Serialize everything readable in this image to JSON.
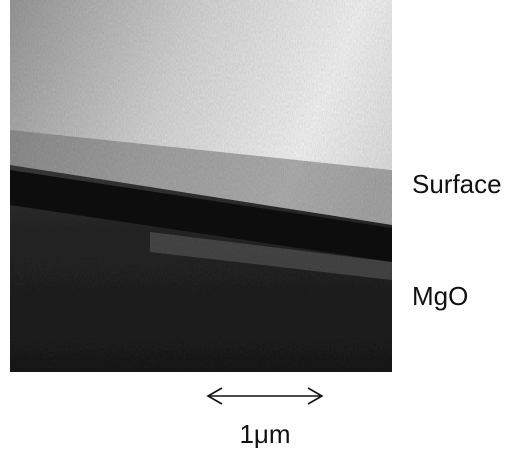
{
  "labels": {
    "surface": "Surface",
    "substrate": "MgO",
    "scale_bar": "1μm"
  }
}
